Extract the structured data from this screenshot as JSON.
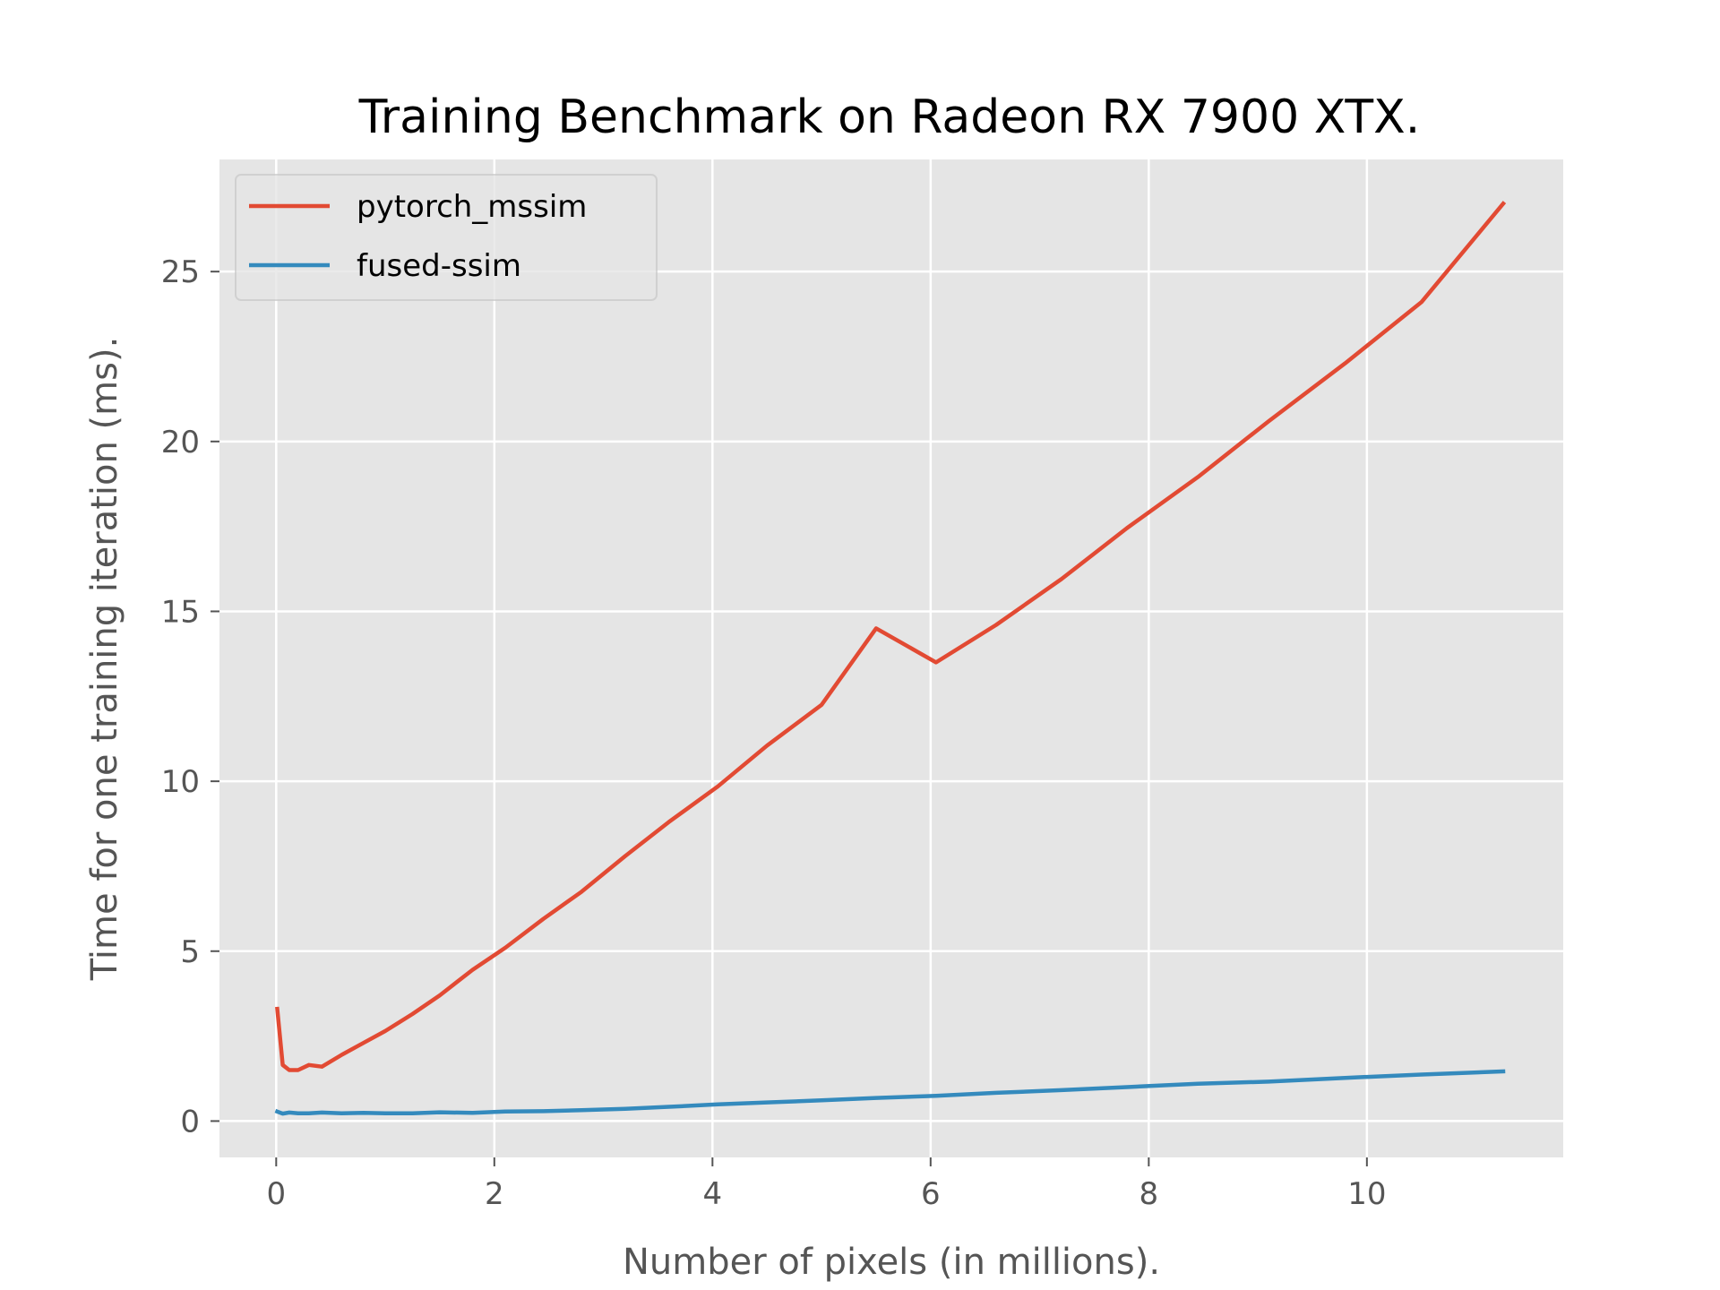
{
  "chart_data": {
    "type": "line",
    "title": "Training Benchmark on Radeon RX 7900 XTX.",
    "xlabel": "Number of pixels (in millions).",
    "ylabel": "Time for one training iteration (ms).",
    "xlim": [
      -0.52,
      11.8
    ],
    "ylim": [
      -1.07,
      28.3
    ],
    "xticks": [
      0,
      2,
      4,
      6,
      8,
      10
    ],
    "yticks": [
      0,
      5,
      10,
      15,
      20,
      25
    ],
    "grid": true,
    "legend_position": "upper-left",
    "colors": {
      "background": "#e5e5e5",
      "grid": "#ffffff",
      "axis_text": "#555555"
    },
    "series": [
      {
        "name": "pytorch_mssim",
        "color": "#e24a33",
        "x": [
          0.01,
          0.06,
          0.12,
          0.2,
          0.3,
          0.42,
          0.6,
          0.8,
          1.0,
          1.25,
          1.5,
          1.8,
          2.1,
          2.45,
          2.8,
          3.2,
          3.6,
          4.05,
          4.5,
          5.0,
          5.5,
          6.05,
          6.6,
          7.2,
          7.8,
          8.45,
          9.1,
          9.8,
          10.5,
          11.25
        ],
        "y": [
          3.3,
          1.65,
          1.5,
          1.5,
          1.65,
          1.6,
          1.95,
          2.3,
          2.65,
          3.15,
          3.7,
          4.45,
          5.1,
          5.95,
          6.75,
          7.8,
          8.8,
          9.85,
          11.05,
          12.25,
          14.5,
          13.5,
          14.6,
          15.95,
          17.45,
          18.95,
          20.6,
          22.3,
          24.1,
          27.0
        ]
      },
      {
        "name": "fused-ssim",
        "color": "#348abd",
        "x": [
          0.01,
          0.06,
          0.12,
          0.2,
          0.3,
          0.42,
          0.6,
          0.8,
          1.0,
          1.25,
          1.5,
          1.8,
          2.1,
          2.45,
          2.8,
          3.2,
          3.6,
          4.05,
          4.5,
          5.0,
          5.5,
          6.05,
          6.6,
          7.2,
          7.8,
          8.45,
          9.1,
          9.8,
          10.5,
          11.25
        ],
        "y": [
          0.28,
          0.22,
          0.25,
          0.23,
          0.23,
          0.25,
          0.23,
          0.24,
          0.23,
          0.23,
          0.26,
          0.24,
          0.28,
          0.29,
          0.32,
          0.36,
          0.42,
          0.49,
          0.55,
          0.61,
          0.68,
          0.74,
          0.83,
          0.91,
          1.0,
          1.1,
          1.16,
          1.27,
          1.37,
          1.46
        ]
      }
    ]
  }
}
